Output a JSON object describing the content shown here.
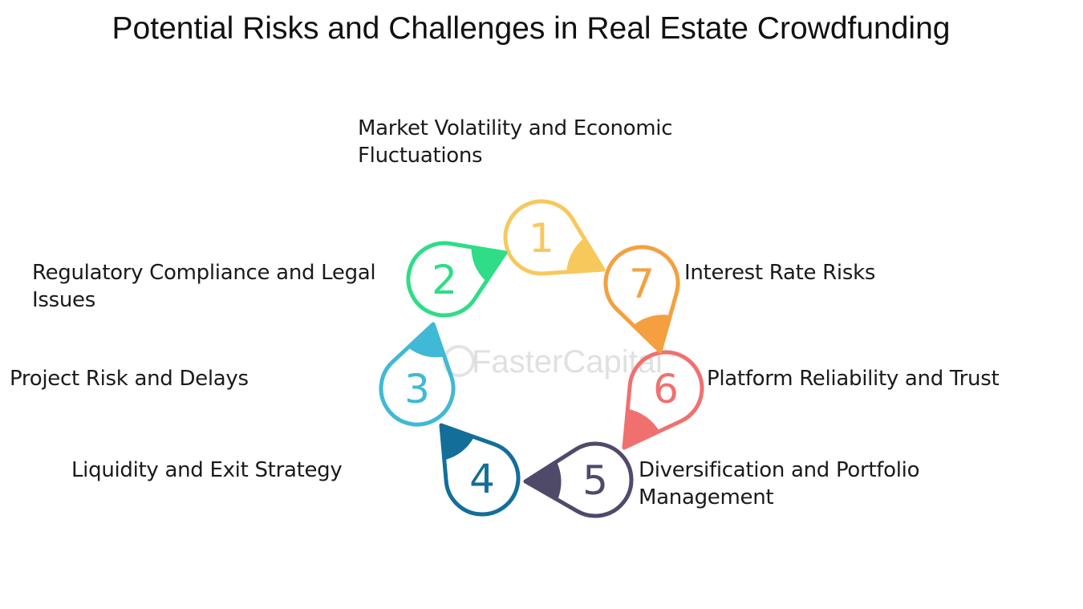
{
  "title": "Potential Risks and Challenges in Real Estate Crowdfunding",
  "watermark": "FasterCapital",
  "steps": [
    {
      "number": "1",
      "color": "#F7C85C",
      "lines": [
        "Market Volatility and Economic",
        "Fluctuations"
      ]
    },
    {
      "number": "2",
      "color": "#2EDD86",
      "lines": [
        "Regulatory Compliance and Legal",
        "Issues"
      ]
    },
    {
      "number": "3",
      "color": "#3FB9D6",
      "lines": [
        "Project Risk and Delays"
      ]
    },
    {
      "number": "4",
      "color": "#136E9A",
      "lines": [
        "Liquidity and Exit Strategy"
      ]
    },
    {
      "number": "5",
      "color": "#4F4A6A",
      "lines": [
        "Diversification and Portfolio",
        "Management"
      ]
    },
    {
      "number": "6",
      "color": "#F07070",
      "lines": [
        "Platform Reliability and Trust"
      ]
    },
    {
      "number": "7",
      "color": "#F4A040",
      "lines": [
        "Interest Rate Risks"
      ]
    }
  ]
}
